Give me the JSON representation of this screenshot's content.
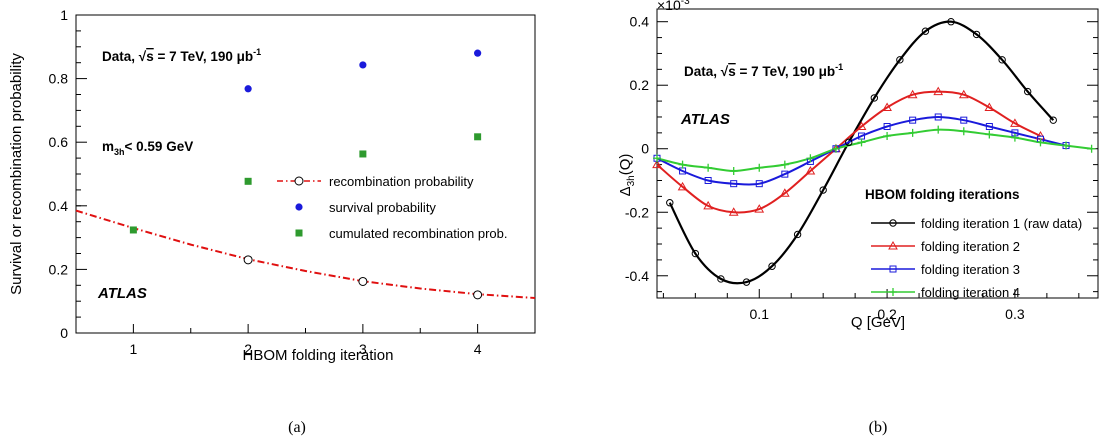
{
  "captions": [
    "(a)",
    "(b)"
  ],
  "chart_data": [
    {
      "type": "scatter",
      "panel": "(a)",
      "xlabel": "HBOM folding iteration",
      "ylabel": "Survival or recombination probability",
      "xlim": [
        0.5,
        4.5
      ],
      "ylim": [
        0,
        1
      ],
      "xticks": [
        "1",
        "2",
        "3",
        "4"
      ],
      "yticks": [
        "0",
        "0.2",
        "0.4",
        "0.6",
        "0.8",
        "1"
      ],
      "annotations": {
        "data_prefix": "Data, ",
        "sqrt": "√",
        "s": "s",
        "energy": " = 7 TeV, 190 μb",
        "lumi_sup": "-1",
        "cut_m": "m",
        "cut_sub": "3h",
        "cut_rest": "< 0.59 GeV",
        "experiment": "ATLAS"
      },
      "series": [
        {
          "name": "recombination probability",
          "x": [
            2,
            3,
            4
          ],
          "y": [
            0.23,
            0.162,
            0.12
          ],
          "color": "#000000",
          "marker": "open-circle"
        },
        {
          "name": "survival probability",
          "x": [
            2,
            3,
            4
          ],
          "y": [
            0.768,
            0.843,
            0.88
          ],
          "color": "#1a1adb",
          "marker": "circle"
        },
        {
          "name": "cumulated recombination prob.",
          "x": [
            1,
            2,
            3,
            4
          ],
          "y": [
            0.324,
            0.477,
            0.563,
            0.617
          ],
          "color": "#2e9a2e",
          "marker": "square"
        }
      ],
      "fit_curve": {
        "x": [
          0.5,
          1,
          1.5,
          2,
          2.5,
          3,
          3.5,
          4,
          4.5
        ],
        "y": [
          0.385,
          0.33,
          0.278,
          0.232,
          0.195,
          0.163,
          0.14,
          0.122,
          0.11
        ],
        "color": "#e01010",
        "style": "dash-dot"
      }
    },
    {
      "type": "line",
      "panel": "(b)",
      "xlabel": "Q [GeV]",
      "ylabel_main": "Δ",
      "ylabel_sub": "3h",
      "ylabel_rest": "(Q)",
      "scale_label": "×10",
      "scale_exp": "-3",
      "xlim": [
        0.02,
        0.365
      ],
      "ylim": [
        -0.47,
        0.44
      ],
      "xticks": [
        "0.1",
        "0.2",
        "0.3"
      ],
      "yticks": [
        "-0.4",
        "-0.2",
        "0",
        "0.2",
        "0.4"
      ],
      "annotations": {
        "data_prefix": "Data, ",
        "sqrt": "√",
        "s": "s",
        "energy": " = 7 TeV, 190 μb",
        "lumi_sup": "-1",
        "experiment": "ATLAS"
      },
      "legend_title": "HBOM folding iterations",
      "series": [
        {
          "name": "folding iteration 1 (raw data)",
          "color": "#000000",
          "marker": "circle",
          "x": [
            0.03,
            0.05,
            0.07,
            0.09,
            0.11,
            0.13,
            0.15,
            0.17,
            0.19,
            0.21,
            0.23,
            0.25,
            0.27,
            0.29,
            0.31,
            0.33
          ],
          "y": [
            -0.17,
            -0.33,
            -0.41,
            -0.42,
            -0.37,
            -0.27,
            -0.13,
            0.02,
            0.16,
            0.28,
            0.37,
            0.4,
            0.36,
            0.28,
            0.18,
            0.09
          ]
        },
        {
          "name": "folding iteration 2",
          "color": "#e02020",
          "marker": "triangle",
          "x": [
            0.02,
            0.04,
            0.06,
            0.08,
            0.1,
            0.12,
            0.14,
            0.16,
            0.18,
            0.2,
            0.22,
            0.24,
            0.26,
            0.28,
            0.3,
            0.32
          ],
          "y": [
            -0.05,
            -0.12,
            -0.18,
            -0.2,
            -0.19,
            -0.14,
            -0.07,
            0.0,
            0.07,
            0.13,
            0.17,
            0.18,
            0.17,
            0.13,
            0.08,
            0.04
          ]
        },
        {
          "name": "folding iteration 3",
          "color": "#1a1adb",
          "marker": "square",
          "x": [
            0.02,
            0.04,
            0.06,
            0.08,
            0.1,
            0.12,
            0.14,
            0.16,
            0.18,
            0.2,
            0.22,
            0.24,
            0.26,
            0.28,
            0.3,
            0.32,
            0.34
          ],
          "y": [
            -0.03,
            -0.07,
            -0.1,
            -0.11,
            -0.11,
            -0.08,
            -0.04,
            0.0,
            0.04,
            0.07,
            0.09,
            0.1,
            0.09,
            0.07,
            0.05,
            0.03,
            0.01
          ]
        },
        {
          "name": "folding iteration 4",
          "color": "#33cc33",
          "marker": "cross",
          "x": [
            0.02,
            0.04,
            0.06,
            0.08,
            0.1,
            0.12,
            0.14,
            0.16,
            0.18,
            0.2,
            0.22,
            0.24,
            0.26,
            0.28,
            0.3,
            0.32,
            0.34,
            0.36
          ],
          "y": [
            -0.03,
            -0.05,
            -0.06,
            -0.07,
            -0.06,
            -0.05,
            -0.03,
            0.0,
            0.02,
            0.04,
            0.05,
            0.06,
            0.055,
            0.045,
            0.035,
            0.02,
            0.01,
            0.0
          ]
        }
      ]
    }
  ]
}
